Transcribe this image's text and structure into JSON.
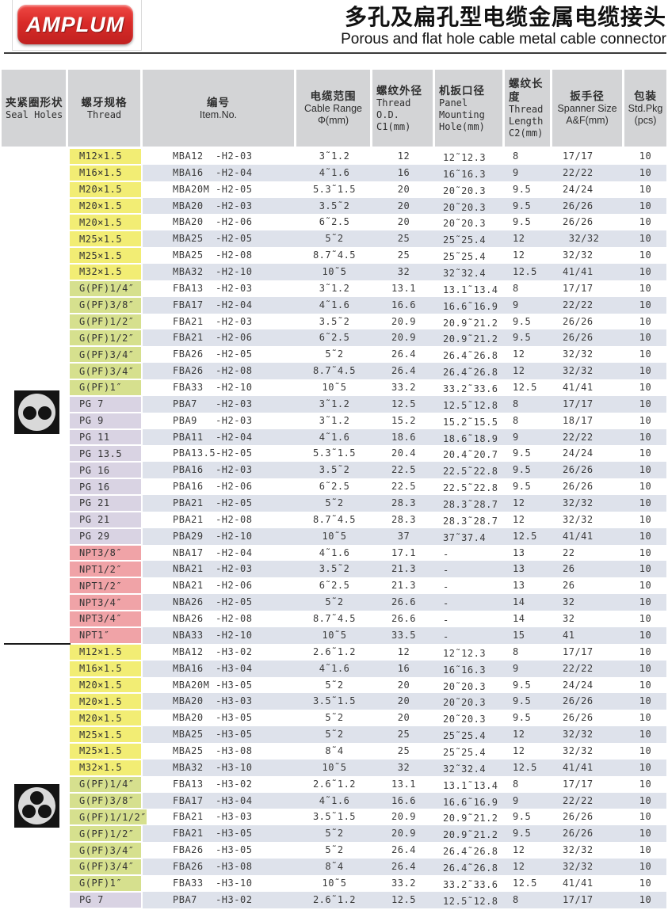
{
  "header": {
    "logo_text": "AMPLUM",
    "title_zh": "多孔及扁孔型电缆金属电缆接头",
    "title_en": "Porous and flat hole cable metal cable connector"
  },
  "colors": {
    "logo_red": "#d92b28",
    "header_gray": "#d3d4d6",
    "stripe_blue": "#dee2eb",
    "thread_M": "#f2ed74",
    "thread_G": "#d6e08e",
    "thread_PG": "#d9d3e3",
    "thread_NPT": "#f0a3a7"
  },
  "table": {
    "columns": [
      {
        "lines": [
          "夹紧圈形状",
          "Seal Holes"
        ],
        "en_font": "mono",
        "align": "l"
      },
      {
        "lines": [
          "螺牙规格",
          "Thread"
        ],
        "en_font": "mono",
        "align": "c"
      },
      {
        "lines": [
          "编号",
          "Item.No."
        ],
        "en_font": "sans",
        "align": "c"
      },
      {
        "lines": [
          "电缆范围",
          "Cable Range",
          "Φ(mm)"
        ],
        "en_font": "sans",
        "align": "c"
      },
      {
        "lines": [
          "螺纹外径",
          "Thread",
          "O.D.",
          "C1(mm)"
        ],
        "en_font": "mono",
        "align": "l"
      },
      {
        "lines": [
          "机扳口径",
          "Panel",
          "Mounting",
          "Hole(mm)"
        ],
        "en_font": "mono",
        "align": "l"
      },
      {
        "lines": [
          "螺纹长度",
          "Thread",
          "Length",
          "C2(mm)"
        ],
        "en_font": "mono",
        "align": "l"
      },
      {
        "lines": [
          "扳手径",
          "Spanner Size",
          "A&F(mm)"
        ],
        "en_font": "sans",
        "align": "c"
      },
      {
        "lines": [
          "包装",
          "Std.Pkg",
          "(pcs)"
        ],
        "en_font": "sans",
        "align": "c"
      }
    ],
    "seal_icons": [
      {
        "name": "two-hole-seal",
        "dots": 2
      },
      {
        "name": "three-hole-seal",
        "dots": 3
      }
    ],
    "sections": [
      {
        "rows": [
          {
            "g": "M",
            "thread": "M12×1.5",
            "item": "MBA12  -H2-03",
            "range": "3˜1.2",
            "od": "12",
            "hole": "12˜12.3",
            "len": "8",
            "spanner": "17/17",
            "pkg": "10"
          },
          {
            "g": "M",
            "thread": "M16×1.5",
            "item": "MBA16  -H2-04",
            "range": "4˜1.6",
            "od": "16",
            "hole": "16˜16.3",
            "len": "9",
            "spanner": "22/22",
            "pkg": "10"
          },
          {
            "g": "M",
            "thread": "M20×1.5",
            "item": "MBA20M -H2-05",
            "range": "5.3˜1.5",
            "od": "20",
            "hole": "20˜20.3",
            "len": "9.5",
            "spanner": "24/24",
            "pkg": "10"
          },
          {
            "g": "M",
            "thread": "M20×1.5",
            "item": "MBA20  -H2-03",
            "range": "3.5˜2",
            "od": "20",
            "hole": "20˜20.3",
            "len": "9.5",
            "spanner": "26/26",
            "pkg": "10"
          },
          {
            "g": "M",
            "thread": "M20×1.5",
            "item": "MBA20  -H2-06",
            "range": "6˜2.5",
            "od": "20",
            "hole": "20˜20.3",
            "len": "9.5",
            "spanner": "26/26",
            "pkg": "10"
          },
          {
            "g": "M",
            "thread": "M25×1.5",
            "item": "MBA25  -H2-05",
            "range": "5˜2",
            "od": "25",
            "hole": "25˜25.4",
            "len": "12",
            "spanner": " 32/32",
            "pkg": "10"
          },
          {
            "g": "M",
            "thread": "M25×1.5",
            "item": "MBA25  -H2-08",
            "range": "8.7˜4.5",
            "od": "25",
            "hole": "25˜25.4",
            "len": "12",
            "spanner": "32/32",
            "pkg": "10"
          },
          {
            "g": "M",
            "thread": "M32×1.5",
            "item": "MBA32  -H2-10",
            "range": "10˜5",
            "od": "32",
            "hole": "32˜32.4",
            "len": "12.5",
            "spanner": "41/41",
            "pkg": "10"
          },
          {
            "g": "G",
            "thread": "G(PF)1/4″",
            "item": "FBA13  -H2-03",
            "range": "3˜1.2",
            "od": "13.1",
            "hole": "13.1˜13.4",
            "len": "8",
            "spanner": "17/17",
            "pkg": "10"
          },
          {
            "g": "G",
            "thread": "G(PF)3/8″",
            "item": "FBA17  -H2-04",
            "range": "4˜1.6",
            "od": "16.6",
            "hole": "16.6˜16.9",
            "len": "9",
            "spanner": "22/22",
            "pkg": "10"
          },
          {
            "g": "G",
            "thread": "G(PF)1/2″",
            "item": "FBA21  -H2-03",
            "range": "3.5˜2",
            "od": "20.9",
            "hole": "20.9˜21.2",
            "len": "9.5",
            "spanner": "26/26",
            "pkg": "10"
          },
          {
            "g": "G",
            "thread": "G(PF)1/2″",
            "item": "FBA21  -H2-06",
            "range": "6˜2.5",
            "od": "20.9",
            "hole": "20.9˜21.2",
            "len": "9.5",
            "spanner": "26/26",
            "pkg": "10"
          },
          {
            "g": "G",
            "thread": "G(PF)3/4″",
            "item": "FBA26  -H2-05",
            "range": "5˜2",
            "od": "26.4",
            "hole": "26.4˜26.8",
            "len": "12",
            "spanner": "32/32",
            "pkg": "10"
          },
          {
            "g": "G",
            "thread": "G(PF)3/4″",
            "item": "FBA26  -H2-08",
            "range": "8.7˜4.5",
            "od": "26.4",
            "hole": "26.4˜26.8",
            "len": "12",
            "spanner": "32/32",
            "pkg": "10"
          },
          {
            "g": "G",
            "thread": "G(PF)1″",
            "item": "FBA33  -H2-10",
            "range": "10˜5",
            "od": "33.2",
            "hole": "33.2˜33.6",
            "len": "12.5",
            "spanner": "41/41",
            "pkg": "10"
          },
          {
            "g": "PG",
            "thread": "PG 7",
            "item": "PBA7   -H2-03",
            "range": "3˜1.2",
            "od": "12.5",
            "hole": "12.5˜12.8",
            "len": "8",
            "spanner": "17/17",
            "pkg": "10"
          },
          {
            "g": "PG",
            "thread": "PG 9",
            "item": "PBA9   -H2-03",
            "range": "3˜1.2",
            "od": "15.2",
            "hole": "15.2˜15.5",
            "len": "8",
            "spanner": "18/17",
            "pkg": "10"
          },
          {
            "g": "PG",
            "thread": "PG 11",
            "item": "PBA11  -H2-04",
            "range": "4˜1.6",
            "od": "18.6",
            "hole": "18.6˜18.9",
            "len": "9",
            "spanner": "22/22",
            "pkg": "10"
          },
          {
            "g": "PG",
            "thread": "PG 13.5",
            "item": "PBA13.5-H2-05",
            "range": "5.3˜1.5",
            "od": "20.4",
            "hole": "20.4˜20.7",
            "len": "9.5",
            "spanner": "24/24",
            "pkg": "10"
          },
          {
            "g": "PG",
            "thread": "PG 16",
            "item": "PBA16  -H2-03",
            "range": "3.5˜2",
            "od": "22.5",
            "hole": "22.5˜22.8",
            "len": "9.5",
            "spanner": "26/26",
            "pkg": "10"
          },
          {
            "g": "PG",
            "thread": "PG 16",
            "item": "PBA16  -H2-06",
            "range": "6˜2.5",
            "od": "22.5",
            "hole": "22.5˜22.8",
            "len": "9.5",
            "spanner": "26/26",
            "pkg": "10"
          },
          {
            "g": "PG",
            "thread": "PG 21",
            "item": "PBA21  -H2-05",
            "range": "5˜2",
            "od": "28.3",
            "hole": "28.3˜28.7",
            "len": "12",
            "spanner": "32/32",
            "pkg": "10"
          },
          {
            "g": "PG",
            "thread": "PG 21",
            "item": "PBA21  -H2-08",
            "range": "8.7˜4.5",
            "od": "28.3",
            "hole": "28.3˜28.7",
            "len": "12",
            "spanner": "32/32",
            "pkg": "10"
          },
          {
            "g": "PG",
            "thread": "PG 29",
            "item": "PBA29  -H2-10",
            "range": "10˜5",
            "od": "37",
            "hole": "37˜37.4",
            "len": "12.5",
            "spanner": "41/41",
            "pkg": "10"
          },
          {
            "g": "NPT",
            "thread": "NPT3/8″",
            "item": "NBA17  -H2-04",
            "range": "4˜1.6",
            "od": "17.1",
            "hole": "-",
            "len": "13",
            "spanner": "22",
            "pkg": "10"
          },
          {
            "g": "NPT",
            "thread": "NPT1/2″",
            "item": "NBA21  -H2-03",
            "range": "3.5˜2",
            "od": "21.3",
            "hole": "-",
            "len": "13",
            "spanner": "26",
            "pkg": "10"
          },
          {
            "g": "NPT",
            "thread": "NPT1/2″",
            "item": "NBA21  -H2-06",
            "range": "6˜2.5",
            "od": "21.3",
            "hole": "-",
            "len": "13",
            "spanner": "26",
            "pkg": "10"
          },
          {
            "g": "NPT",
            "thread": "NPT3/4″",
            "item": "NBA26  -H2-05",
            "range": "5˜2",
            "od": "26.6",
            "hole": "-",
            "len": "14",
            "spanner": "32",
            "pkg": "10"
          },
          {
            "g": "NPT",
            "thread": "NPT3/4″",
            "item": "NBA26  -H2-08",
            "range": "8.7˜4.5",
            "od": "26.6",
            "hole": "-",
            "len": "14",
            "spanner": "32",
            "pkg": "10"
          },
          {
            "g": "NPT",
            "thread": "NPT1″",
            "item": "NBA33  -H2-10",
            "range": "10˜5",
            "od": "33.5",
            "hole": "-",
            "len": "15",
            "spanner": "41",
            "pkg": "10"
          }
        ]
      },
      {
        "rows": [
          {
            "g": "M",
            "thread": "M12×1.5",
            "item": "MBA12  -H3-02",
            "range": "2.6˜1.2",
            "od": "12",
            "hole": "12˜12.3",
            "len": "8",
            "spanner": "17/17",
            "pkg": "10"
          },
          {
            "g": "M",
            "thread": "M16×1.5",
            "item": "MBA16  -H3-04",
            "range": "4˜1.6",
            "od": "16",
            "hole": "16˜16.3",
            "len": "9",
            "spanner": "22/22",
            "pkg": "10"
          },
          {
            "g": "M",
            "thread": "M20×1.5",
            "item": "MBA20M -H3-05",
            "range": "5˜2",
            "od": "20",
            "hole": "20˜20.3",
            "len": "9.5",
            "spanner": "24/24",
            "pkg": "10"
          },
          {
            "g": "M",
            "thread": "M20×1.5",
            "item": "MBA20  -H3-03",
            "range": "3.5˜1.5",
            "od": "20",
            "hole": "20˜20.3",
            "len": "9.5",
            "spanner": "26/26",
            "pkg": "10"
          },
          {
            "g": "M",
            "thread": "M20×1.5",
            "item": "MBA20  -H3-05",
            "range": "5˜2",
            "od": "20",
            "hole": "20˜20.3",
            "len": "9.5",
            "spanner": "26/26",
            "pkg": "10"
          },
          {
            "g": "M",
            "thread": "M25×1.5",
            "item": "MBA25  -H3-05",
            "range": "5˜2",
            "od": "25",
            "hole": "25˜25.4",
            "len": "12",
            "spanner": "32/32",
            "pkg": "10"
          },
          {
            "g": "M",
            "thread": "M25×1.5",
            "item": "MBA25  -H3-08",
            "range": "8˜4",
            "od": "25",
            "hole": "25˜25.4",
            "len": "12",
            "spanner": "32/32",
            "pkg": "10"
          },
          {
            "g": "M",
            "thread": "M32×1.5",
            "item": "MBA32  -H3-10",
            "range": "10˜5",
            "od": "32",
            "hole": "32˜32.4",
            "len": "12.5",
            "spanner": "41/41",
            "pkg": "10"
          },
          {
            "g": "G",
            "thread": "G(PF)1/4″",
            "item": "FBA13  -H3-02",
            "range": "2.6˜1.2",
            "od": "13.1",
            "hole": "13.1˜13.4",
            "len": "8",
            "spanner": "17/17",
            "pkg": "10"
          },
          {
            "g": "G",
            "thread": "G(PF)3/8″",
            "item": "FBA17  -H3-04",
            "range": "4˜1.6",
            "od": "16.6",
            "hole": "16.6˜16.9",
            "len": "9",
            "spanner": "22/22",
            "pkg": "10"
          },
          {
            "g": "G",
            "thread": "G(PF)1/1/2″",
            "item": "FBA21  -H3-03",
            "range": "3.5˜1.5",
            "od": "20.9",
            "hole": "20.9˜21.2",
            "len": "9.5",
            "spanner": "26/26",
            "pkg": "10"
          },
          {
            "g": "G",
            "thread": "G(PF)1/2″",
            "item": "FBA21  -H3-05",
            "range": "5˜2",
            "od": "20.9",
            "hole": "20.9˜21.2",
            "len": "9.5",
            "spanner": "26/26",
            "pkg": "10"
          },
          {
            "g": "G",
            "thread": "G(PF)3/4″",
            "item": "FBA26  -H3-05",
            "range": "5˜2",
            "od": "26.4",
            "hole": "26.4˜26.8",
            "len": "12",
            "spanner": "32/32",
            "pkg": "10"
          },
          {
            "g": "G",
            "thread": "G(PF)3/4″",
            "item": "FBA26  -H3-08",
            "range": "8˜4",
            "od": "26.4",
            "hole": "26.4˜26.8",
            "len": "12",
            "spanner": "32/32",
            "pkg": "10"
          },
          {
            "g": "G",
            "thread": "G(PF)1″",
            "item": "FBA33  -H3-10",
            "range": "10˜5",
            "od": "33.2",
            "hole": "33.2˜33.6",
            "len": "12.5",
            "spanner": "41/41",
            "pkg": "10"
          },
          {
            "g": "PG",
            "thread": "PG 7",
            "item": "PBA7   -H3-02",
            "range": "2.6˜1.2",
            "od": "12.5",
            "hole": "12.5˜12.8",
            "len": "8",
            "spanner": "17/17",
            "pkg": "10"
          }
        ]
      }
    ]
  }
}
